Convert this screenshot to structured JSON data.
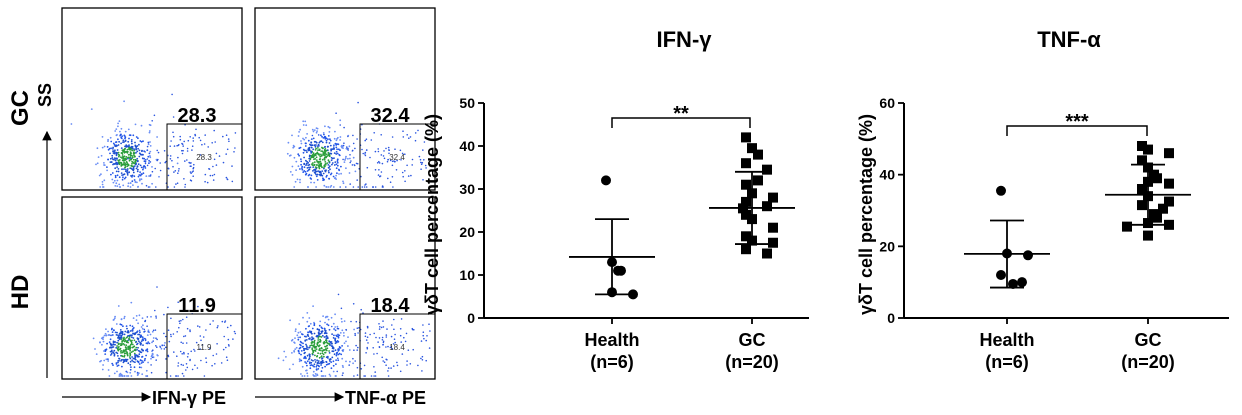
{
  "flow_panel": {
    "row_labels": [
      "GC",
      "HD"
    ],
    "y_axis_label": "SS",
    "x_axis_labels": [
      "IFN-γ PE",
      "TNF-α PE"
    ],
    "plots": [
      {
        "row": "GC",
        "marker": "IFN-γ",
        "gate_value": "28.3"
      },
      {
        "row": "GC",
        "marker": "TNF-α",
        "gate_value": "32.4"
      },
      {
        "row": "HD",
        "marker": "IFN-γ",
        "gate_value": "11.9"
      },
      {
        "row": "HD",
        "marker": "TNF-α",
        "gate_value": "18.4"
      }
    ]
  },
  "chart_data": [
    {
      "type": "scatter",
      "title": "IFN-γ",
      "ylabel": "γδT cell percentage (%)",
      "ylim": [
        0,
        50
      ],
      "yticks": [
        0,
        10,
        20,
        30,
        40,
        50
      ],
      "categories": [
        "Health\n(n=6)",
        "GC\n(n=20)"
      ],
      "series": [
        {
          "name": "Health",
          "marker": "circle",
          "values": [
            32,
            13,
            11,
            11,
            6,
            5.5
          ],
          "mean": 14.2,
          "sd_low": 5.5,
          "sd_high": 23
        },
        {
          "name": "GC",
          "marker": "square",
          "values": [
            42,
            39.5,
            38,
            36,
            34.5,
            32,
            31,
            29,
            28,
            27,
            26,
            25.5,
            24,
            23,
            21,
            19,
            18,
            17.5,
            16,
            15
          ],
          "mean": 25.6,
          "sd_low": 17.2,
          "sd_high": 34
        }
      ],
      "significance": "**"
    },
    {
      "type": "scatter",
      "title": "TNF-α",
      "ylabel": "γδT cell percentage (%)",
      "ylim": [
        0,
        60
      ],
      "yticks": [
        0,
        20,
        40,
        60
      ],
      "categories": [
        "Health\n(n=6)",
        "GC\n(n=20)"
      ],
      "series": [
        {
          "name": "Health",
          "marker": "circle",
          "values": [
            35.5,
            18,
            17.5,
            12,
            10,
            9.5
          ],
          "mean": 17.9,
          "sd_low": 8.5,
          "sd_high": 27.2
        },
        {
          "name": "GC",
          "marker": "square",
          "values": [
            48,
            47,
            46,
            44,
            42,
            40,
            39,
            38,
            37.5,
            36,
            34,
            32.5,
            31.5,
            30.5,
            29,
            28,
            26.5,
            26,
            25.5,
            23
          ],
          "mean": 34.4,
          "sd_low": 26,
          "sd_high": 42.8
        }
      ],
      "significance": "***"
    }
  ]
}
